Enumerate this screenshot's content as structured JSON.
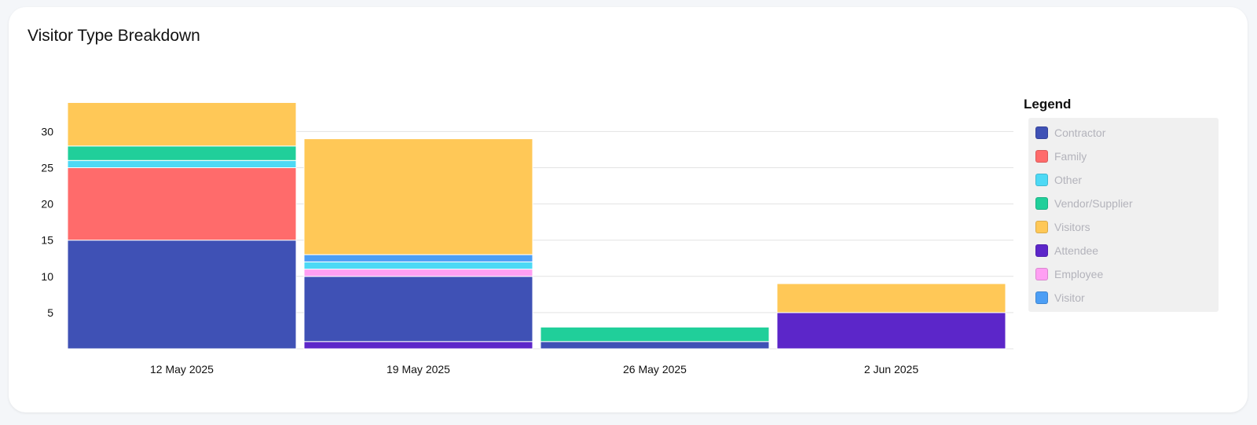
{
  "card": {
    "title": "Visitor Type Breakdown"
  },
  "chart_data": {
    "type": "bar",
    "stacked": true,
    "title": "Visitor Type Breakdown",
    "xlabel": "",
    "ylabel": "",
    "categories": [
      "12 May 2025",
      "19 May 2025",
      "26 May 2025",
      "2 Jun 2025"
    ],
    "yticks": [
      5,
      10,
      15,
      20,
      25,
      30
    ],
    "ylim": [
      0,
      34
    ],
    "grid": true,
    "legend_title": "Legend",
    "legend_position": "right",
    "series": [
      {
        "name": "Contractor",
        "color": "#3f51b5",
        "values": [
          15,
          9,
          1,
          0
        ]
      },
      {
        "name": "Family",
        "color": "#ff6b6b",
        "values": [
          10,
          0,
          0,
          0
        ]
      },
      {
        "name": "Other",
        "color": "#4dd9f5",
        "values": [
          1,
          1,
          0,
          0
        ]
      },
      {
        "name": "Vendor/Supplier",
        "color": "#20cf9a",
        "values": [
          2,
          0,
          2,
          0
        ]
      },
      {
        "name": "Visitors",
        "color": "#ffc857",
        "values": [
          6,
          16,
          0,
          4
        ]
      },
      {
        "name": "Attendee",
        "color": "#5c26c9",
        "values": [
          0,
          1,
          0,
          5
        ]
      },
      {
        "name": "Employee",
        "color": "#ff9ff3",
        "values": [
          0,
          1,
          0,
          0
        ]
      },
      {
        "name": "Visitor",
        "color": "#4c9ef5",
        "values": [
          0,
          1,
          0,
          0
        ]
      }
    ],
    "stack_order": [
      [
        "Contractor",
        "Family",
        "Other",
        "Vendor/Supplier",
        "Visitors"
      ],
      [
        "Attendee",
        "Contractor",
        "Employee",
        "Other",
        "Visitor",
        "Visitors"
      ],
      [
        "Contractor",
        "Vendor/Supplier"
      ],
      [
        "Attendee",
        "Visitors"
      ]
    ]
  }
}
